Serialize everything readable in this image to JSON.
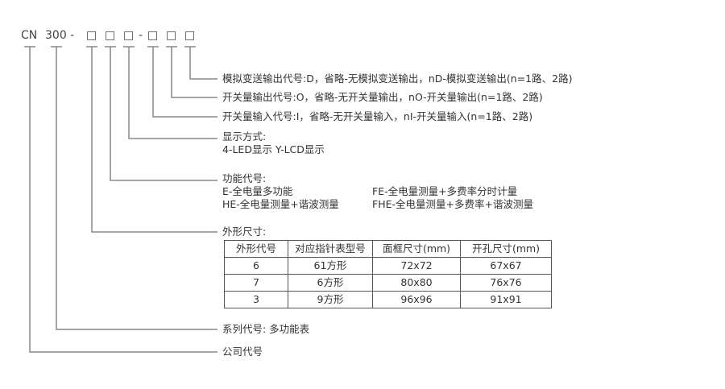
{
  "code": {
    "company": "CN",
    "series": "300 -",
    "sep": "-",
    "box": "□"
  },
  "items": [
    {
      "id": "analog",
      "lines": [
        "模拟变送输出代号:D，省略-无模拟变送输出，nD-模拟变送输出(n=1路、2路)"
      ]
    },
    {
      "id": "switch-out",
      "lines": [
        "开关量输出代号:O，省略-无开关量输出，nO-开关量输出(n=1路、2路)"
      ]
    },
    {
      "id": "switch-in",
      "lines": [
        "开关量输入代号:I，省略-无开关量输入，nI-开关量输入(n=1路、2路)"
      ]
    },
    {
      "id": "display",
      "lines": [
        "显示方式:",
        "4-LED显示 Y-LCD显示"
      ]
    },
    {
      "id": "function",
      "lines": [
        "功能代号:"
      ],
      "options": [
        [
          "E-全电量多功能",
          "FE-全电量测量+多费率分时计量"
        ],
        [
          "HE-全电量测量+谐波测量",
          "FHE-全电量测量+多费率+谐波测量"
        ]
      ]
    },
    {
      "id": "size",
      "lines": [
        "外形尺寸:"
      ]
    },
    {
      "id": "series",
      "lines": [
        "系列代号: 多功能表"
      ]
    },
    {
      "id": "company",
      "lines": [
        "公司代号"
      ]
    }
  ],
  "size_table": {
    "headers": [
      "外形代号",
      "对应指针表型号",
      "面框尺寸(mm)",
      "开孔尺寸(mm)"
    ],
    "rows": [
      [
        "6",
        "61方形",
        "72x72",
        "67x67"
      ],
      [
        "7",
        "6方形",
        "80x80",
        "76x76"
      ],
      [
        "3",
        "9方形",
        "96x96",
        "91x91"
      ]
    ]
  }
}
